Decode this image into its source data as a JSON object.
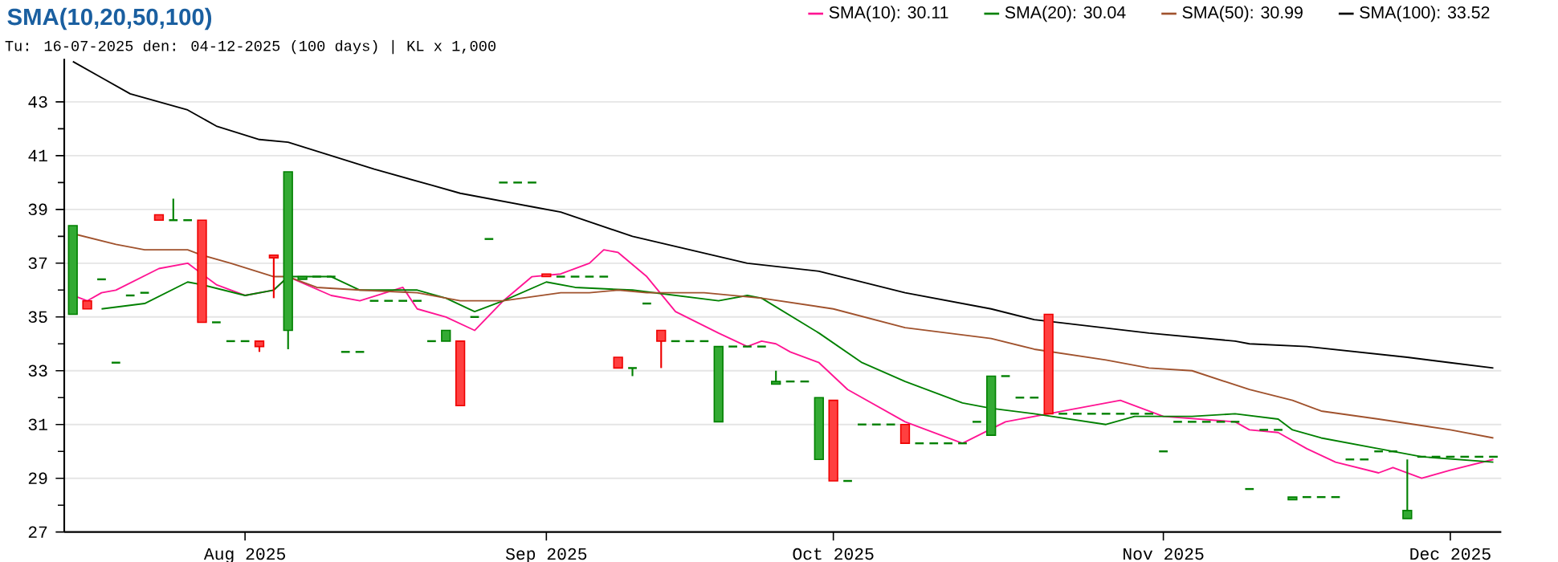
{
  "chart_data": {
    "type": "candlestick",
    "title": "SMA(10,20,50,100)",
    "subtitle": "Tu: 16-07-2025 den: 04-12-2025 (100 days) | KL x 1,000",
    "categories": [
      null,
      null,
      null,
      null,
      null,
      null,
      null,
      null,
      null,
      null,
      null,
      null,
      "Aug 2025",
      null,
      null,
      null,
      null,
      null,
      null,
      null,
      null,
      null,
      null,
      null,
      null,
      null,
      null,
      null,
      null,
      null,
      null,
      null,
      null,
      "Sep 2025",
      null,
      null,
      null,
      null,
      null,
      null,
      null,
      null,
      null,
      null,
      null,
      null,
      null,
      null,
      null,
      null,
      null,
      null,
      null,
      "Oct 2025",
      null,
      null,
      null,
      null,
      null,
      null,
      null,
      null,
      null,
      null,
      null,
      null,
      null,
      null,
      null,
      null,
      null,
      null,
      null,
      null,
      null,
      null,
      "Nov 2025",
      null,
      null,
      null,
      null,
      null,
      null,
      null,
      null,
      null,
      null,
      null,
      null,
      null,
      null,
      null,
      null,
      null,
      null,
      null,
      "Dec 2025",
      null,
      null,
      null
    ],
    "ohlc": [
      [
        35.1,
        38.4,
        35.1,
        38.4
      ],
      [
        35.6,
        35.6,
        35.3,
        35.3
      ],
      [
        36.4,
        36.4,
        36.4,
        36.4
      ],
      [
        33.3,
        33.3,
        33.3,
        33.3
      ],
      [
        35.8,
        35.8,
        35.8,
        35.8
      ],
      [
        35.9,
        35.9,
        35.9,
        35.9
      ],
      [
        38.8,
        38.8,
        38.6,
        38.6
      ],
      [
        38.6,
        39.4,
        38.6,
        38.6
      ],
      [
        38.6,
        38.6,
        38.6,
        38.6
      ],
      [
        38.6,
        38.6,
        34.8,
        34.8
      ],
      [
        34.8,
        34.8,
        34.8,
        34.8
      ],
      [
        34.1,
        34.1,
        34.1,
        34.1
      ],
      [
        34.1,
        34.1,
        34.1,
        34.1
      ],
      [
        34.1,
        34.1,
        33.7,
        33.9
      ],
      [
        37.3,
        37.3,
        35.7,
        37.2
      ],
      [
        34.5,
        40.4,
        33.8,
        40.4
      ],
      [
        36.4,
        36.5,
        36.4,
        36.5
      ],
      [
        36.5,
        36.5,
        36.5,
        36.5
      ],
      [
        36.5,
        36.5,
        36.5,
        36.5
      ],
      [
        33.7,
        33.7,
        33.7,
        33.7
      ],
      [
        33.7,
        33.7,
        33.7,
        33.7
      ],
      [
        35.6,
        35.6,
        35.6,
        35.6
      ],
      [
        35.6,
        35.6,
        35.6,
        35.6
      ],
      [
        35.6,
        35.6,
        35.6,
        35.6
      ],
      [
        35.6,
        35.6,
        35.6,
        35.6
      ],
      [
        34.1,
        34.1,
        34.1,
        34.1
      ],
      [
        34.1,
        34.5,
        34.1,
        34.5
      ],
      [
        34.1,
        34.1,
        31.7,
        31.7
      ],
      [
        35.0,
        35.0,
        35.0,
        35.0
      ],
      [
        37.9,
        37.9,
        37.9,
        37.9
      ],
      [
        40.0,
        40.0,
        40.0,
        40.0
      ],
      [
        40.0,
        40.0,
        40.0,
        40.0
      ],
      [
        40.0,
        40.0,
        40.0,
        40.0
      ],
      [
        36.6,
        36.6,
        36.5,
        36.5
      ],
      [
        36.5,
        36.5,
        36.5,
        36.5
      ],
      [
        36.5,
        36.5,
        36.5,
        36.5
      ],
      [
        36.5,
        36.5,
        36.5,
        36.5
      ],
      [
        36.5,
        36.5,
        36.5,
        36.5
      ],
      [
        33.5,
        33.5,
        33.1,
        33.1
      ],
      [
        33.1,
        33.1,
        32.8,
        33.1
      ],
      [
        35.5,
        35.5,
        35.5,
        35.5
      ],
      [
        34.5,
        34.5,
        33.1,
        34.1
      ],
      [
        34.1,
        34.1,
        34.1,
        34.1
      ],
      [
        34.1,
        34.1,
        34.1,
        34.1
      ],
      [
        34.1,
        34.1,
        34.1,
        34.1
      ],
      [
        31.1,
        33.9,
        31.1,
        33.9
      ],
      [
        33.9,
        33.9,
        33.9,
        33.9
      ],
      [
        33.9,
        33.9,
        33.9,
        33.9
      ],
      [
        33.9,
        33.9,
        33.9,
        33.9
      ],
      [
        32.5,
        33.0,
        32.5,
        32.6
      ],
      [
        32.6,
        32.6,
        32.6,
        32.6
      ],
      [
        32.6,
        32.6,
        32.6,
        32.6
      ],
      [
        29.7,
        32.0,
        29.7,
        32.0
      ],
      [
        31.9,
        31.9,
        28.9,
        28.9
      ],
      [
        28.9,
        28.9,
        28.9,
        28.9
      ],
      [
        31.0,
        31.0,
        31.0,
        31.0
      ],
      [
        31.0,
        31.0,
        31.0,
        31.0
      ],
      [
        31.0,
        31.0,
        31.0,
        31.0
      ],
      [
        31.0,
        31.0,
        30.3,
        30.3
      ],
      [
        30.3,
        30.3,
        30.3,
        30.3
      ],
      [
        30.3,
        30.3,
        30.3,
        30.3
      ],
      [
        30.3,
        30.3,
        30.3,
        30.3
      ],
      [
        30.3,
        30.3,
        30.3,
        30.3
      ],
      [
        31.1,
        31.1,
        31.1,
        31.1
      ],
      [
        30.6,
        32.8,
        30.6,
        32.8
      ],
      [
        32.8,
        32.8,
        32.8,
        32.8
      ],
      [
        32.0,
        32.0,
        32.0,
        32.0
      ],
      [
        32.0,
        32.0,
        32.0,
        32.0
      ],
      [
        35.1,
        35.1,
        31.4,
        31.4
      ],
      [
        31.4,
        31.4,
        31.4,
        31.4
      ],
      [
        31.4,
        31.4,
        31.4,
        31.4
      ],
      [
        31.4,
        31.4,
        31.4,
        31.4
      ],
      [
        31.4,
        31.4,
        31.4,
        31.4
      ],
      [
        31.4,
        31.4,
        31.4,
        31.4
      ],
      [
        31.4,
        31.4,
        31.4,
        31.4
      ],
      [
        31.4,
        31.4,
        31.4,
        31.4
      ],
      [
        30.0,
        30.0,
        30.0,
        30.0
      ],
      [
        31.1,
        31.1,
        31.1,
        31.1
      ],
      [
        31.1,
        31.1,
        31.1,
        31.1
      ],
      [
        31.1,
        31.1,
        31.1,
        31.1
      ],
      [
        31.1,
        31.1,
        31.1,
        31.1
      ],
      [
        31.1,
        31.1,
        31.1,
        31.1
      ],
      [
        28.6,
        28.6,
        28.6,
        28.6
      ],
      [
        30.8,
        30.8,
        30.8,
        30.8
      ],
      [
        30.8,
        30.8,
        30.8,
        30.8
      ],
      [
        28.2,
        28.3,
        28.2,
        28.3
      ],
      [
        28.3,
        28.3,
        28.3,
        28.3
      ],
      [
        28.3,
        28.3,
        28.3,
        28.3
      ],
      [
        28.3,
        28.3,
        28.3,
        28.3
      ],
      [
        29.7,
        29.7,
        29.7,
        29.7
      ],
      [
        29.7,
        29.7,
        29.7,
        29.7
      ],
      [
        30.0,
        30.0,
        30.0,
        30.0
      ],
      [
        30.0,
        30.0,
        30.0,
        30.0
      ],
      [
        27.5,
        29.7,
        27.5,
        27.8
      ],
      [
        29.8,
        29.8,
        29.8,
        29.8
      ],
      [
        29.8,
        29.8,
        29.8,
        29.8
      ],
      [
        29.8,
        29.8,
        29.8,
        29.8
      ],
      [
        29.8,
        29.8,
        29.8,
        29.8
      ],
      [
        29.8,
        29.8,
        29.8,
        29.8
      ],
      [
        29.8,
        29.8,
        29.8,
        29.8
      ]
    ],
    "series": [
      {
        "name": "SMA(10): 30.11",
        "type": "line",
        "color": "#ff1493",
        "values": [
          35.8,
          35.6,
          35.9,
          36.0,
          null,
          null,
          36.8,
          null,
          37.0,
          null,
          36.2,
          null,
          35.8,
          null,
          36.0,
          36.5,
          null,
          null,
          35.8,
          null,
          35.6,
          null,
          null,
          36.1,
          35.3,
          null,
          35.0,
          null,
          34.5,
          null,
          35.6,
          null,
          36.5,
          null,
          36.6,
          null,
          37.0,
          37.5,
          37.4,
          null,
          36.5,
          null,
          35.2,
          null,
          null,
          34.4,
          null,
          33.9,
          34.1,
          34.0,
          33.7,
          null,
          33.3,
          null,
          32.3,
          null,
          null,
          null,
          31.1,
          null,
          null,
          null,
          30.3,
          null,
          null,
          31.1,
          null,
          null,
          31.4,
          null,
          31.6,
          null,
          null,
          31.9,
          null,
          null,
          31.3,
          null,
          null,
          null,
          null,
          31.1,
          30.8,
          null,
          30.7,
          null,
          30.1,
          null,
          29.6,
          null,
          null,
          29.2,
          29.4,
          null,
          29.0,
          null,
          29.3,
          null,
          null,
          29.7
        ]
      },
      {
        "name": "SMA(20): 30.04",
        "type": "line",
        "color": "#008000",
        "values": [
          null,
          null,
          35.3,
          null,
          null,
          35.5,
          null,
          null,
          36.3,
          36.2,
          null,
          null,
          35.8,
          null,
          36.0,
          36.5,
          null,
          null,
          36.5,
          null,
          36.0,
          null,
          null,
          null,
          36.0,
          null,
          35.7,
          null,
          35.2,
          null,
          35.6,
          null,
          null,
          36.3,
          null,
          36.1,
          null,
          null,
          null,
          36.0,
          null,
          null,
          null,
          null,
          null,
          35.6,
          null,
          35.8,
          35.7,
          null,
          null,
          null,
          34.4,
          null,
          null,
          33.3,
          null,
          null,
          32.6,
          null,
          null,
          null,
          31.8,
          null,
          31.6,
          null,
          null,
          31.4,
          null,
          null,
          null,
          null,
          31.0,
          null,
          31.3,
          null,
          null,
          null,
          31.3,
          null,
          null,
          31.4,
          null,
          null,
          31.2,
          30.8,
          null,
          30.5,
          null,
          null,
          null,
          30.1,
          null,
          null,
          29.8,
          null,
          null,
          null,
          null,
          29.6
        ]
      },
      {
        "name": "SMA(50): 30.99",
        "type": "line",
        "color": "#a0522d",
        "values": [
          38.1,
          null,
          null,
          37.7,
          null,
          37.5,
          null,
          null,
          37.5,
          37.3,
          null,
          37.0,
          null,
          null,
          36.5,
          36.5,
          null,
          36.1,
          null,
          null,
          36.0,
          null,
          null,
          null,
          35.9,
          null,
          null,
          35.6,
          null,
          null,
          35.6,
          null,
          null,
          null,
          35.9,
          null,
          35.9,
          null,
          36.0,
          null,
          35.9,
          null,
          null,
          null,
          35.9,
          null,
          null,
          null,
          35.7,
          null,
          null,
          null,
          null,
          35.3,
          null,
          null,
          null,
          null,
          34.6,
          null,
          null,
          null,
          null,
          null,
          34.2,
          null,
          null,
          33.8,
          null,
          null,
          null,
          null,
          33.4,
          null,
          null,
          33.1,
          null,
          null,
          33.0,
          null,
          null,
          null,
          32.3,
          null,
          null,
          31.9,
          null,
          31.5,
          null,
          null,
          null,
          31.2,
          null,
          null,
          null,
          null,
          30.8,
          null,
          null,
          30.5
        ]
      },
      {
        "name": "SMA(100): 33.52",
        "type": "line",
        "color": "#000000",
        "values": [
          44.5,
          null,
          43.9,
          null,
          43.3,
          null,
          null,
          null,
          42.7,
          null,
          42.1,
          null,
          null,
          41.6,
          null,
          41.5,
          null,
          null,
          41.0,
          null,
          null,
          40.5,
          null,
          null,
          null,
          39.9,
          null,
          39.6,
          null,
          null,
          null,
          null,
          39.1,
          null,
          38.9,
          null,
          null,
          null,
          null,
          38.0,
          null,
          null,
          null,
          null,
          null,
          null,
          null,
          37.0,
          null,
          null,
          null,
          null,
          36.7,
          null,
          null,
          null,
          null,
          null,
          35.9,
          null,
          null,
          null,
          null,
          null,
          35.3,
          null,
          null,
          34.9,
          null,
          null,
          null,
          null,
          null,
          null,
          null,
          34.4,
          null,
          null,
          null,
          null,
          null,
          34.1,
          34.0,
          null,
          null,
          null,
          33.9,
          null,
          null,
          null,
          null,
          null,
          null,
          33.5,
          null,
          null,
          33.3,
          null,
          null,
          33.1
        ]
      }
    ],
    "ylim": [
      27,
      44.6
    ],
    "yticks": [
      27,
      29,
      31,
      33,
      35,
      37,
      39,
      41,
      43
    ],
    "grid": "y",
    "legend": "top right"
  }
}
